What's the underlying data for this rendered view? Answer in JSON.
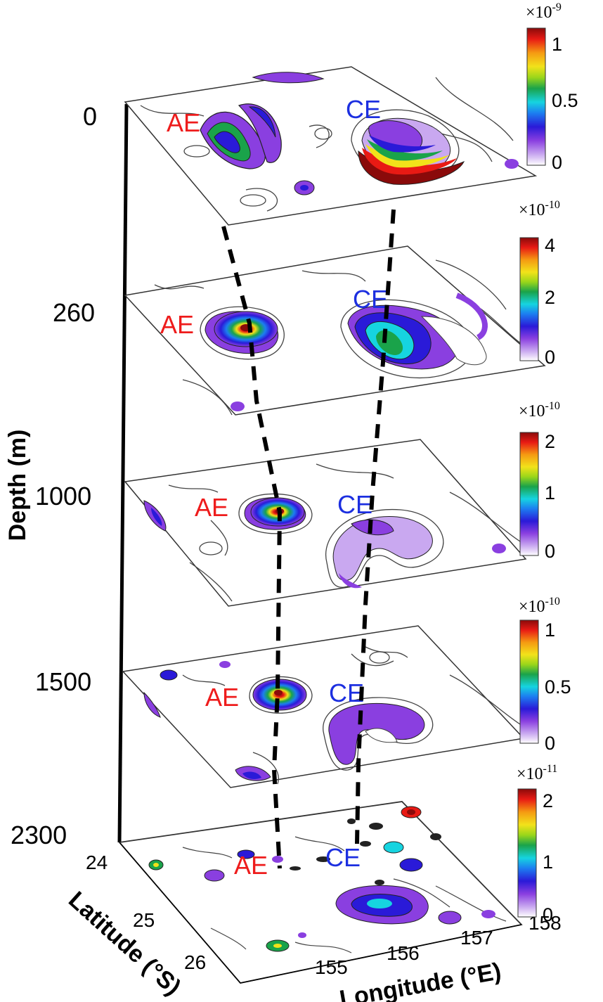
{
  "axis": {
    "depth_title": "Depth (m)",
    "latitude_title": "Latitude (°S)",
    "longitude_title": "Longitude (°E)",
    "latitude_ticks": [
      "24",
      "25",
      "26"
    ],
    "longitude_ticks": [
      "155",
      "156",
      "157",
      "158"
    ]
  },
  "eddies": {
    "anticyclonic": "AE",
    "cyclonic": "CE"
  },
  "layers": [
    {
      "depth": "0",
      "scale_base": "×10",
      "scale_exp": "-9",
      "ticks": [
        "1",
        "0.5",
        "0"
      ]
    },
    {
      "depth": "260",
      "scale_base": "×10",
      "scale_exp": "-10",
      "ticks": [
        "4",
        "2",
        "0"
      ]
    },
    {
      "depth": "1000",
      "scale_base": "×10",
      "scale_exp": "-10",
      "ticks": [
        "2",
        "1",
        "0"
      ]
    },
    {
      "depth": "1500",
      "scale_base": "×10",
      "scale_exp": "-10",
      "ticks": [
        "1",
        "0.5",
        "0"
      ]
    },
    {
      "depth": "2300",
      "scale_base": "×10",
      "scale_exp": "-11",
      "ticks": [
        "2",
        "1",
        "0"
      ]
    }
  ],
  "colors": {
    "colormap": [
      "#ffffff",
      "#c9a8f0",
      "#8a3fe0",
      "#2a1ad8",
      "#1c7ef0",
      "#16d4e0",
      "#1aa34a",
      "#9ad61a",
      "#f2e21a",
      "#f59a12",
      "#e81a14",
      "#8a0a0a"
    ],
    "ae_label": "#ee1c1c",
    "ce_label": "#1c2fe0"
  }
}
